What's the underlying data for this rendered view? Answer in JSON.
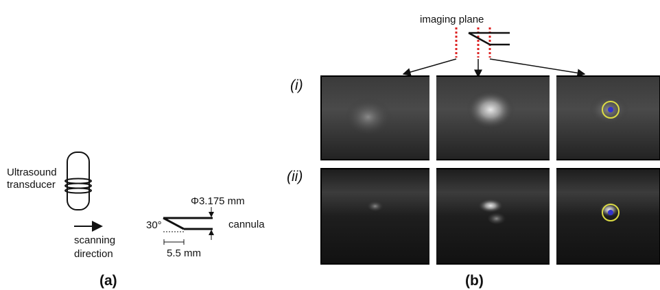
{
  "panel_a": {
    "transducer_label": [
      "Ultrasound",
      "transducer"
    ],
    "scan_label": [
      "scanning",
      "direction"
    ],
    "diameter_label": "Φ3.175 mm",
    "cannula_label": "cannula",
    "angle_label": "30°",
    "length_label": "5.5 mm",
    "caption": "(a)"
  },
  "panel_b": {
    "plane_label": "imaging plane",
    "row_labels": [
      "(i)",
      "(ii)"
    ],
    "caption": "(b)"
  }
}
